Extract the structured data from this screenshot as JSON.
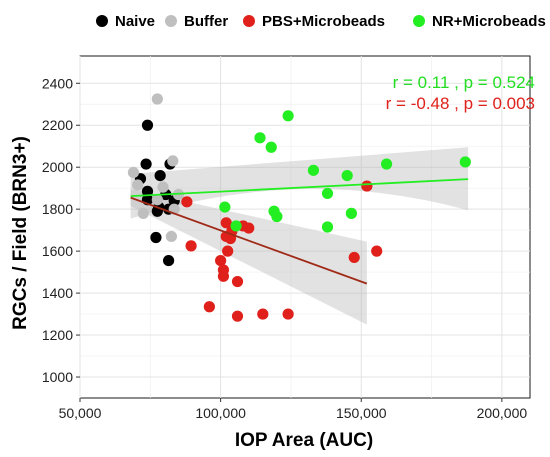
{
  "chart_data": {
    "type": "scatter",
    "xlabel": "IOP Area (AUC)",
    "ylabel": "RGCs / Field (BRN3+)",
    "xlim": [
      50000,
      210000
    ],
    "ylim": [
      900,
      2530
    ],
    "x_ticks": [
      50000,
      100000,
      150000,
      200000
    ],
    "x_tick_labels": [
      "50,000",
      "100,000",
      "150,000",
      "200,000"
    ],
    "y_ticks": [
      1000,
      1200,
      1400,
      1600,
      1800,
      2000,
      2200,
      2400
    ],
    "y_tick_labels": [
      "1000",
      "1200",
      "1400",
      "1600",
      "1800",
      "2000",
      "2200",
      "2400"
    ],
    "grid": true,
    "legend_position": "top",
    "series": [
      {
        "name": "Naive",
        "color": "#000000",
        "points": [
          [
            74000,
            2200
          ],
          [
            73500,
            2015
          ],
          [
            82000,
            2015
          ],
          [
            78500,
            1960
          ],
          [
            71500,
            1945
          ],
          [
            74000,
            1885
          ],
          [
            80500,
            1870
          ],
          [
            74000,
            1845
          ],
          [
            83500,
            1840
          ],
          [
            78000,
            1810
          ],
          [
            81500,
            1800
          ],
          [
            77500,
            1790
          ],
          [
            77000,
            1665
          ],
          [
            81500,
            1555
          ]
        ]
      },
      {
        "name": "Buffer",
        "color": "#bfbfbf",
        "points": [
          [
            77500,
            2325
          ],
          [
            83000,
            2030
          ],
          [
            69000,
            1975
          ],
          [
            70500,
            1915
          ],
          [
            79500,
            1905
          ],
          [
            85000,
            1870
          ],
          [
            77500,
            1845
          ],
          [
            83500,
            1800
          ],
          [
            72500,
            1780
          ],
          [
            82500,
            1670
          ]
        ]
      },
      {
        "name": "PBS+Microbeads",
        "color": "#e0201b",
        "points": [
          [
            152000,
            1910
          ],
          [
            88000,
            1835
          ],
          [
            102000,
            1735
          ],
          [
            108000,
            1720
          ],
          [
            104000,
            1695
          ],
          [
            110000,
            1710
          ],
          [
            102000,
            1670
          ],
          [
            103500,
            1660
          ],
          [
            89500,
            1625
          ],
          [
            102500,
            1600
          ],
          [
            155500,
            1600
          ],
          [
            100000,
            1555
          ],
          [
            101000,
            1510
          ],
          [
            147500,
            1570
          ],
          [
            101000,
            1480
          ],
          [
            106000,
            1455
          ],
          [
            96000,
            1335
          ],
          [
            106000,
            1290
          ],
          [
            115000,
            1300
          ],
          [
            124000,
            1300
          ]
        ]
      },
      {
        "name": "NR+Microbeads",
        "color": "#22ee22",
        "points": [
          [
            124000,
            2245
          ],
          [
            114000,
            2140
          ],
          [
            118000,
            2095
          ],
          [
            187000,
            2025
          ],
          [
            159000,
            2015
          ],
          [
            133000,
            1985
          ],
          [
            145000,
            1960
          ],
          [
            138000,
            1875
          ],
          [
            101500,
            1810
          ],
          [
            119000,
            1790
          ],
          [
            120000,
            1765
          ],
          [
            146500,
            1780
          ],
          [
            138000,
            1715
          ],
          [
            105500,
            1720
          ]
        ]
      }
    ],
    "fit_lines": [
      {
        "name": "NR+Microbeads",
        "color": "#22ee22",
        "x": [
          68000,
          188000
        ],
        "y": [
          1862,
          1943
        ],
        "band_low": [
          1755,
          1795
        ],
        "band_high": [
          1968,
          2095
        ],
        "band_low_mid": 1895,
        "band_high_mid": 1965
      },
      {
        "name": "PBS+Microbeads",
        "color": "#a02a18",
        "x": [
          68000,
          152000
        ],
        "y": [
          1855,
          1445
        ],
        "band_low": [
          1815,
          1250
        ],
        "band_high": [
          1895,
          1645
        ]
      }
    ],
    "annotations": [
      {
        "text": "r = 0.11 , p =  0.524",
        "color": "#22dd22"
      },
      {
        "text": "r = -0.48 , p =  0.003",
        "color": "#e0201b"
      }
    ]
  }
}
